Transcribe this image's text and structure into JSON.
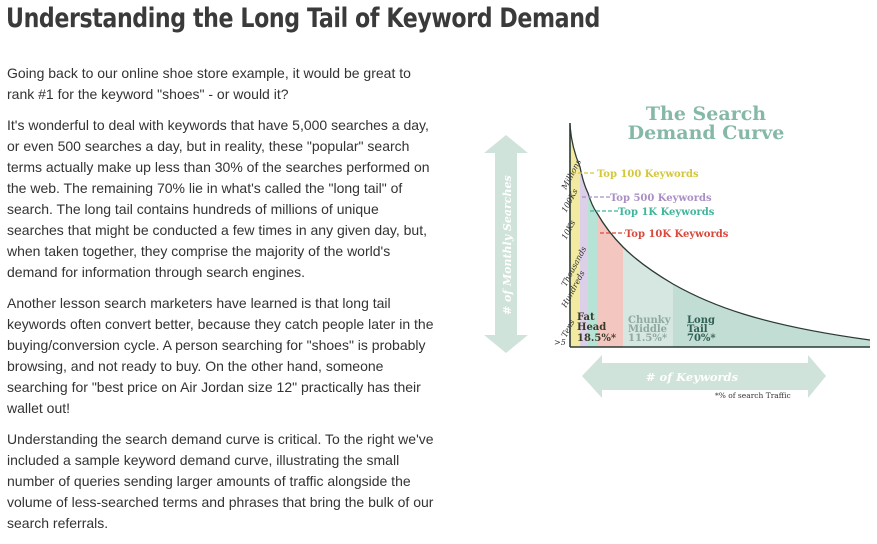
{
  "title": "Understanding the Long Tail of Keyword Demand",
  "paragraphs": [
    "Going back to our online shoe store example, it would be great to rank #1 for the keyword \"shoes\" - or would it?",
    "It's wonderful to deal with keywords that have 5,000 searches a day, or even 500 searches a day, but in reality, these \"popular\" search terms actually make up less than 30% of the searches performed on the web. The remaining 70% lie in what's called the \"long tail\" of search. The long tail contains hundreds of millions of unique searches that might be conducted a few times in any given day, but, when taken together, they comprise the majority of the world's demand for information through search engines.",
    "Another lesson search marketers have learned is that long tail keywords often convert better, because they catch people later in the buying/conversion cycle. A person searching for \"shoes\" is probably browsing, and not ready to buy. On the other hand, someone searching for \"best price on Air Jordan size 12\" practically has their wallet out!",
    "Understanding the search demand curve is critical. To the right we've included a sample keyword demand curve, illustrating the small number of queries sending larger amounts of traffic alongside the volume of less-searched terms and phrases that bring the bulk of our search referrals."
  ],
  "figure": {
    "title_line1": "The Search",
    "title_line2": "Demand Curve",
    "y_arrow_label": "# of Monthly Searches",
    "x_arrow_label": "# of Keywords",
    "footnote": "*% of search Traffic",
    "y_ticks": [
      "Millions",
      "100Ks",
      "10Ks",
      "Thousands",
      "Hundreds",
      "Tens",
      ">5"
    ],
    "callouts": [
      {
        "label": "Top 100  Keywords",
        "color": "#d4c73a"
      },
      {
        "label": "Top 500 Keywords",
        "color": "#a98fc4"
      },
      {
        "label": "Top 1K Keywords",
        "color": "#3fb59a"
      },
      {
        "label": "Top 10K Keywords",
        "color": "#d9483b"
      }
    ],
    "segments": [
      {
        "line1": "Fat",
        "line2": "Head",
        "share": "18.5%*",
        "color": "#3a3a2a"
      },
      {
        "line1": "Chunky",
        "line2": "Middle",
        "share": "11.5%*",
        "color": "#8fa8a2"
      },
      {
        "line1": "Long",
        "line2": "Tail",
        "share": "70%*",
        "color": "#2f5e54"
      }
    ],
    "colors": {
      "title": "#86b8a8",
      "arrow": "#cfe3da",
      "arrow_text": "#ffffff",
      "fill_top100": "#f2eaa0",
      "fill_top500": "#dccfe8",
      "fill_top1k": "#b7e3d6",
      "fill_top10k": "#f3c7c0",
      "fill_middle": "#d6e7e1",
      "fill_tail": "#c2ddd3"
    }
  }
}
